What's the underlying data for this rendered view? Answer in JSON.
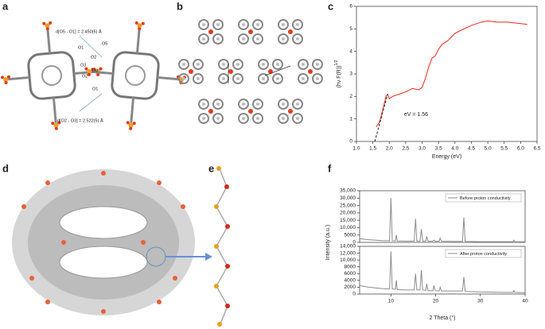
{
  "panel_letters": [
    "a",
    "b",
    "c",
    "d",
    "e",
    "f"
  ],
  "panel_a": {
    "labels": [
      "d[O5 - O1] = 2.450(6) Å",
      "O1",
      "O5",
      "O2",
      "O3",
      "O2",
      "O3",
      "O1",
      "d[O2 - O3] = 2.522(5) Å"
    ]
  },
  "chart_data": [
    {
      "type": "line",
      "xlabel": "Energy (eV)",
      "ylabel": "(hν F(R))",
      "ylabel_superscript": "1/2",
      "annotation": "eV = 1.56",
      "xlim": [
        1.0,
        6.5
      ],
      "ylim": [
        0,
        6
      ],
      "xticks": [
        {
          "value": 1.0,
          "label": "1.0"
        },
        {
          "value": 1.5,
          "label": "1.5"
        },
        {
          "value": 2.0,
          "label": "2.0"
        },
        {
          "value": 2.5,
          "label": "2.5"
        },
        {
          "value": 3.0,
          "label": "3.0"
        },
        {
          "value": 3.5,
          "label": "3.5"
        },
        {
          "value": 4.0,
          "label": "4.0"
        },
        {
          "value": 4.5,
          "label": "4.5"
        },
        {
          "value": 5.0,
          "label": "5.0"
        },
        {
          "value": 5.5,
          "label": "5.5"
        },
        {
          "value": 6.0,
          "label": "6.0"
        },
        {
          "value": 6.5,
          "label": "6.5"
        }
      ],
      "yticks": [
        0,
        1,
        2,
        3,
        4,
        5,
        6
      ],
      "x": [
        1.6,
        1.7,
        1.8,
        1.9,
        1.95,
        2.0,
        2.1,
        2.3,
        2.5,
        2.7,
        2.9,
        3.0,
        3.1,
        3.2,
        3.3,
        3.4,
        3.5,
        3.6,
        3.8,
        4.0,
        4.2,
        4.5,
        4.8,
        5.0,
        5.3,
        5.6,
        5.9,
        6.2
      ],
      "series": [
        {
          "color": "#e8291c",
          "values": [
            0.65,
            0.85,
            1.4,
            2.0,
            2.1,
            1.9,
            2.0,
            2.1,
            2.2,
            2.35,
            2.3,
            2.4,
            2.8,
            3.3,
            3.7,
            3.8,
            4.1,
            4.3,
            4.5,
            4.8,
            4.95,
            5.15,
            5.3,
            5.35,
            5.3,
            5.3,
            5.25,
            5.2
          ]
        }
      ],
      "fit_line": {
        "x": [
          1.56,
          1.95
        ],
        "values": [
          0,
          2.1
        ],
        "color": "#222222"
      }
    },
    {
      "type": "line",
      "ylabel": "Intensity (a.u.)",
      "legend": "upper right",
      "xlim": [
        3,
        40
      ],
      "ylim": [
        0,
        35000
      ],
      "yticks": [
        0,
        {
          "value": 5000,
          "label": "5000"
        },
        {
          "value": 10000,
          "label": "10,000"
        },
        {
          "value": 15000,
          "label": "15,000"
        },
        {
          "value": 20000,
          "label": "20,000"
        },
        {
          "value": 25000,
          "label": "25,000"
        },
        {
          "value": 30000,
          "label": "30,000"
        },
        {
          "value": 35000,
          "label": "35,000"
        }
      ],
      "x": [
        3,
        5,
        8,
        9.7,
        10,
        10.3,
        11,
        11.2,
        11.4,
        13,
        15.2,
        15.5,
        15.8,
        16.5,
        16.8,
        17.1,
        17.8,
        18,
        18.3,
        19.4,
        19.6,
        19.9,
        20.8,
        21,
        21.3,
        24,
        26,
        26.3,
        26.6,
        28,
        30,
        35,
        37.3,
        37.5,
        37.7,
        40
      ],
      "series": [
        {
          "name": "Before proton conductivity",
          "color": "#8c8c8c",
          "values": [
            2500,
            1800,
            1200,
            1100,
            30000,
            1100,
            1000,
            5000,
            1000,
            900,
            900,
            16000,
            900,
            900,
            9000,
            900,
            900,
            4000,
            800,
            800,
            1500,
            800,
            800,
            3000,
            800,
            700,
            700,
            17000,
            700,
            600,
            500,
            500,
            500,
            1500,
            500,
            400
          ]
        }
      ]
    },
    {
      "type": "line",
      "xlabel": "2 Theta (°)",
      "legend": "upper right",
      "xlim": [
        3,
        40
      ],
      "ylim": [
        0,
        14000
      ],
      "xticks": [
        10,
        20,
        30,
        40
      ],
      "yticks": [
        0,
        {
          "value": 2000,
          "label": "2000"
        },
        {
          "value": 4000,
          "label": "4000"
        },
        {
          "value": 6000,
          "label": "6000"
        },
        {
          "value": 8000,
          "label": "8000"
        },
        {
          "value": 10000,
          "label": "10,000"
        },
        {
          "value": 12000,
          "label": "12,000"
        },
        {
          "value": 14000,
          "label": "14,000"
        }
      ],
      "x": [
        3,
        5,
        8,
        9.7,
        10,
        10.3,
        11,
        11.2,
        11.4,
        13,
        15.2,
        15.5,
        15.8,
        16.5,
        16.8,
        17.1,
        17.8,
        18,
        18.3,
        19.4,
        19.6,
        19.9,
        20.8,
        21,
        21.3,
        24,
        26,
        26.3,
        26.6,
        28,
        30,
        35,
        37.3,
        37.5,
        37.7,
        40
      ],
      "series": [
        {
          "name": "After proton conductivity",
          "color": "#8c8c8c",
          "values": [
            2500,
            2000,
            1600,
            1500,
            12500,
            1500,
            1400,
            4000,
            1300,
            1200,
            1200,
            6000,
            1200,
            1200,
            7000,
            1200,
            1100,
            3000,
            1000,
            1000,
            2500,
            1000,
            900,
            2000,
            900,
            900,
            900,
            5000,
            800,
            700,
            600,
            500,
            500,
            1000,
            500,
            400
          ]
        }
      ]
    }
  ]
}
